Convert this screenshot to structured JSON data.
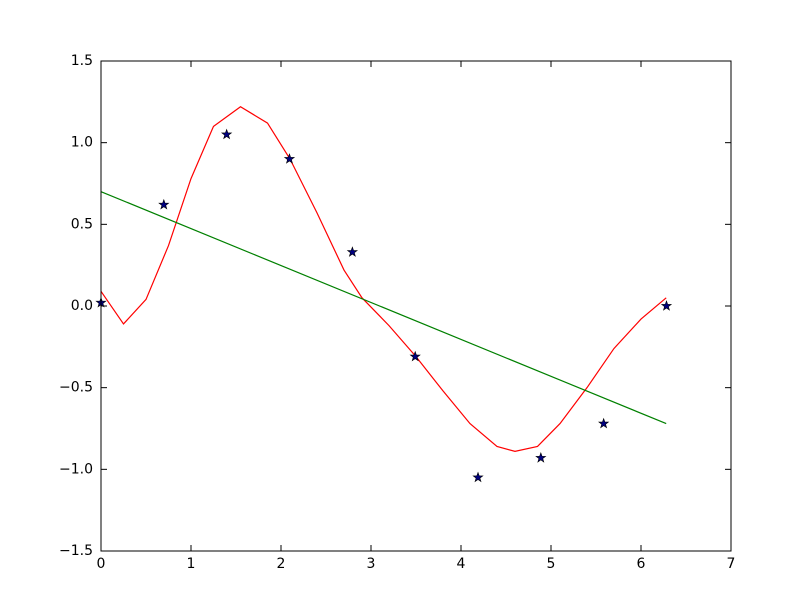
{
  "chart_data": {
    "type": "line",
    "xlim": [
      0,
      7
    ],
    "xticks": [
      0,
      1,
      2,
      3,
      4,
      5,
      6,
      7
    ],
    "ylim": [
      -1.5,
      1.5
    ],
    "yticks": [
      {
        "value": -1.5,
        "label": "−1.5"
      },
      {
        "value": -1,
        "label": "−1.0"
      },
      {
        "value": -0.5,
        "label": "−0.5"
      },
      {
        "value": 0,
        "label": "0.0"
      },
      0.5,
      {
        "value": 1,
        "label": "1.0"
      },
      1.5
    ],
    "series": [
      {
        "type": "line",
        "color": "#ff0000",
        "x": [
          0,
          0.25,
          0.5,
          0.75,
          1.0,
          1.25,
          1.55,
          1.85,
          2.1,
          2.4,
          2.7,
          2.9,
          3.2,
          3.5,
          3.8,
          4.1,
          4.4,
          4.6,
          4.85,
          5.1,
          5.4,
          5.7,
          6.0,
          6.28
        ],
        "values": [
          0.09,
          -0.11,
          0.04,
          0.37,
          0.78,
          1.1,
          1.22,
          1.12,
          0.9,
          0.57,
          0.22,
          0.05,
          -0.12,
          -0.31,
          -0.52,
          -0.72,
          -0.86,
          -0.89,
          -0.86,
          -0.72,
          -0.5,
          -0.26,
          -0.08,
          0.05
        ]
      },
      {
        "type": "line",
        "color": "#008000",
        "x": [
          0,
          6.28
        ],
        "values": [
          0.7,
          -0.72
        ]
      },
      {
        "type": "scatter",
        "color": "#000080",
        "marker": "star",
        "x": [
          0,
          0.698,
          1.396,
          2.094,
          2.793,
          3.491,
          4.189,
          4.887,
          5.585,
          6.283
        ],
        "values": [
          0.02,
          0.62,
          1.05,
          0.9,
          0.33,
          -0.31,
          -1.05,
          -0.93,
          -0.72,
          0.0
        ]
      }
    ]
  }
}
